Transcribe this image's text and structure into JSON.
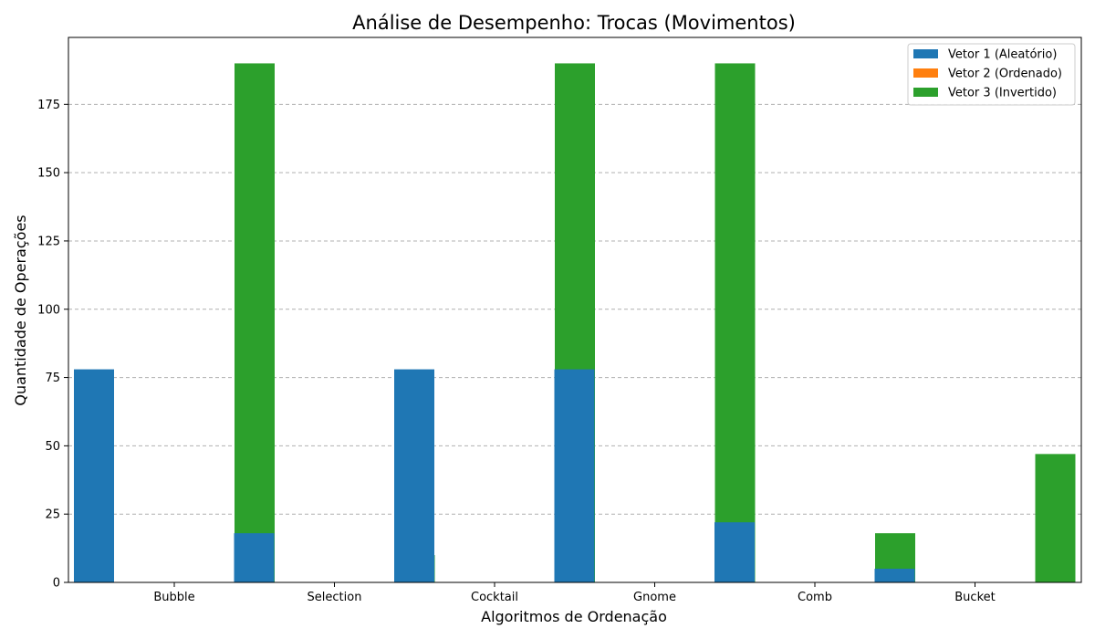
{
  "chart_data": {
    "type": "bar",
    "title": "Análise de Desempenho: Trocas (Movimentos)",
    "xlabel": "Algoritmos de Ordenação",
    "ylabel": "Quantidade de Operações",
    "categories": [
      "Bubble",
      "Selection",
      "Cocktail",
      "Gnome",
      "Comb",
      "Bucket"
    ],
    "series": [
      {
        "name": "Vetor 1 (Aleatório)",
        "color": "#1f77b4",
        "values": [
          78,
          18,
          78,
          78,
          22,
          5
        ]
      },
      {
        "name": "Vetor 2 (Ordenado)",
        "color": "#ff7f0e",
        "values": [
          0,
          0,
          0,
          0,
          0,
          0
        ]
      },
      {
        "name": "Vetor 3 (Invertido)",
        "color": "#2ca02c",
        "values": [
          190,
          10,
          190,
          190,
          18,
          47
        ]
      }
    ],
    "ylim": [
      0,
      199.5
    ],
    "yticks": [
      0,
      25,
      50,
      75,
      100,
      125,
      150,
      175
    ],
    "grid": "y-dashed",
    "legend_position": "top-right"
  }
}
